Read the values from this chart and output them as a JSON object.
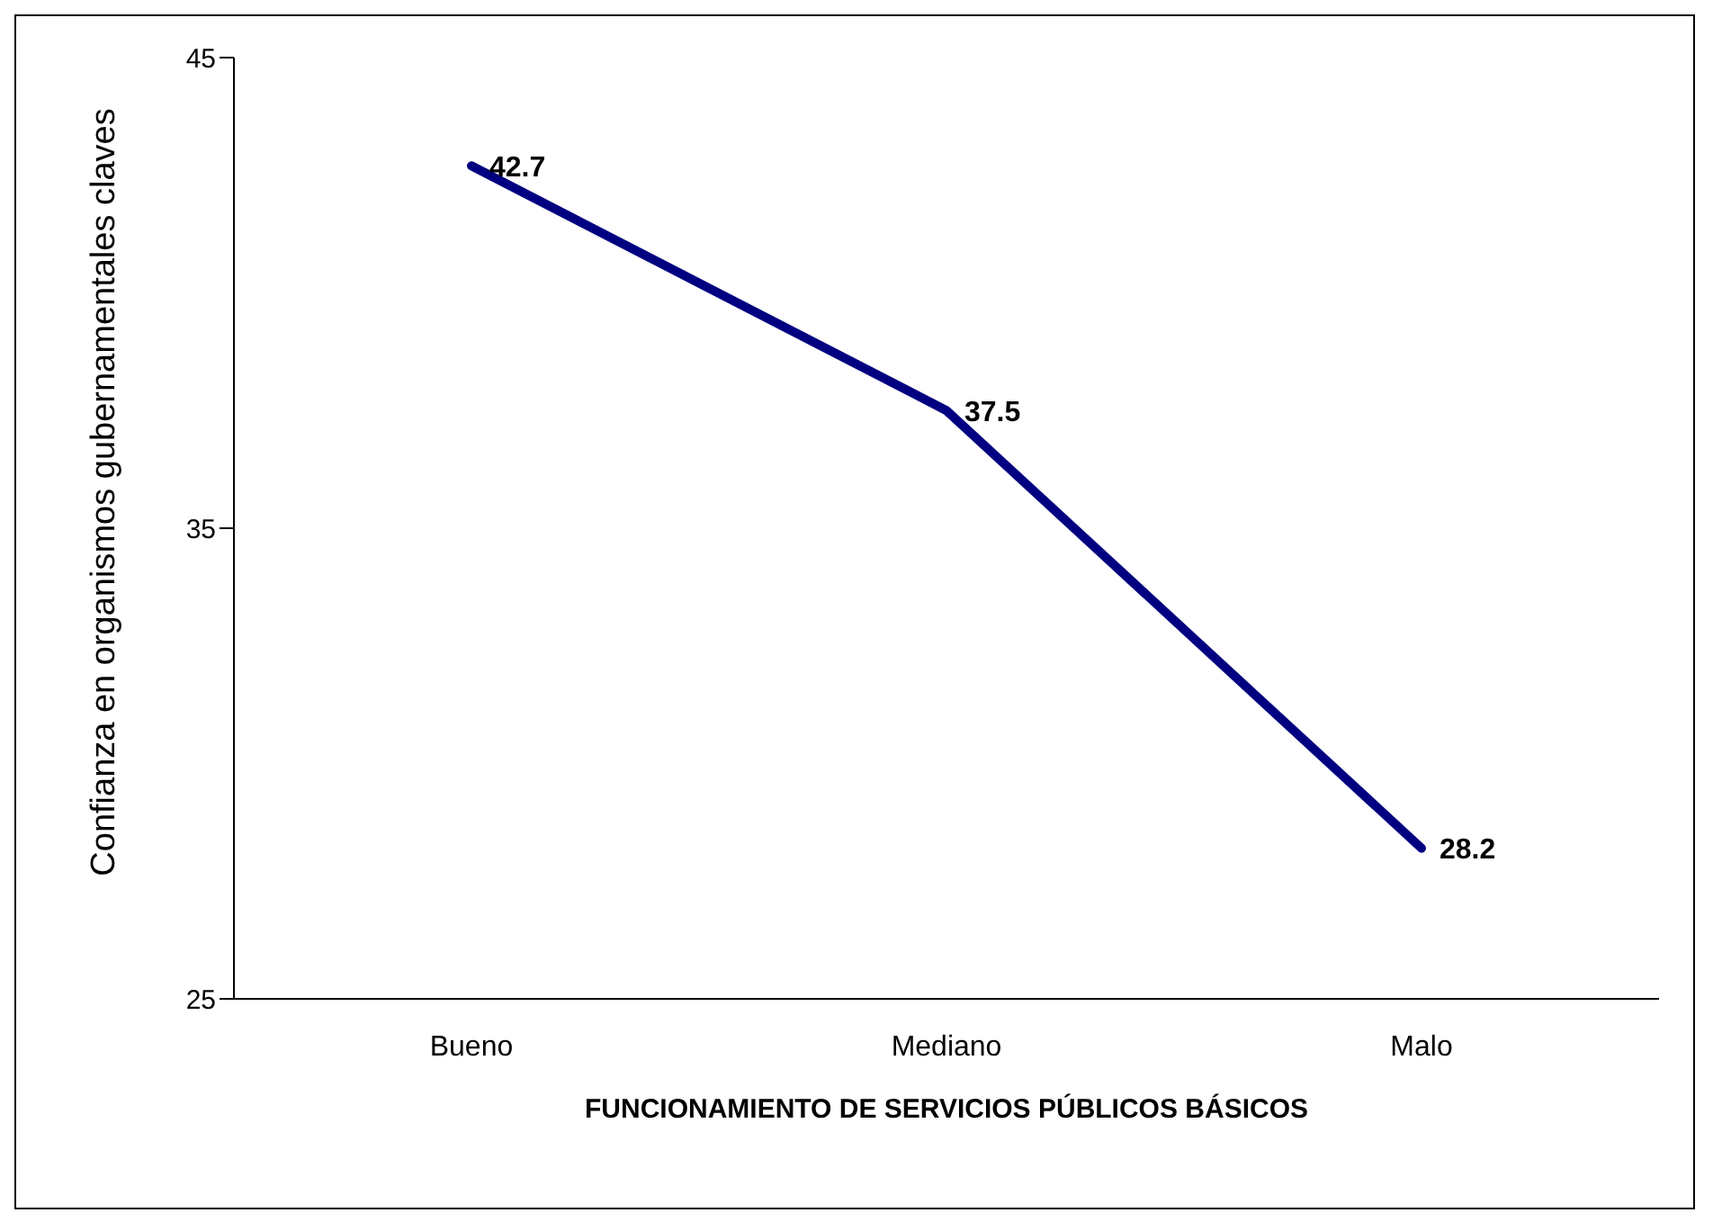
{
  "chart_data": {
    "type": "line",
    "xlabel": "FUNCIONAMIENTO DE SERVICIOS PÚBLICOS BÁSICOS",
    "ylabel": "Confianza en organismos gubernamentales claves",
    "categories": [
      "Bueno",
      "Mediano",
      "Malo"
    ],
    "series": [
      {
        "color": "#000080",
        "values": [
          42.7,
          37.5,
          28.2
        ]
      }
    ],
    "ylim": [
      25,
      45
    ],
    "yticks": [
      25,
      35,
      45
    ],
    "data_labels": true,
    "grid": false,
    "legend": false,
    "marker": "none",
    "line_style": "solid"
  }
}
